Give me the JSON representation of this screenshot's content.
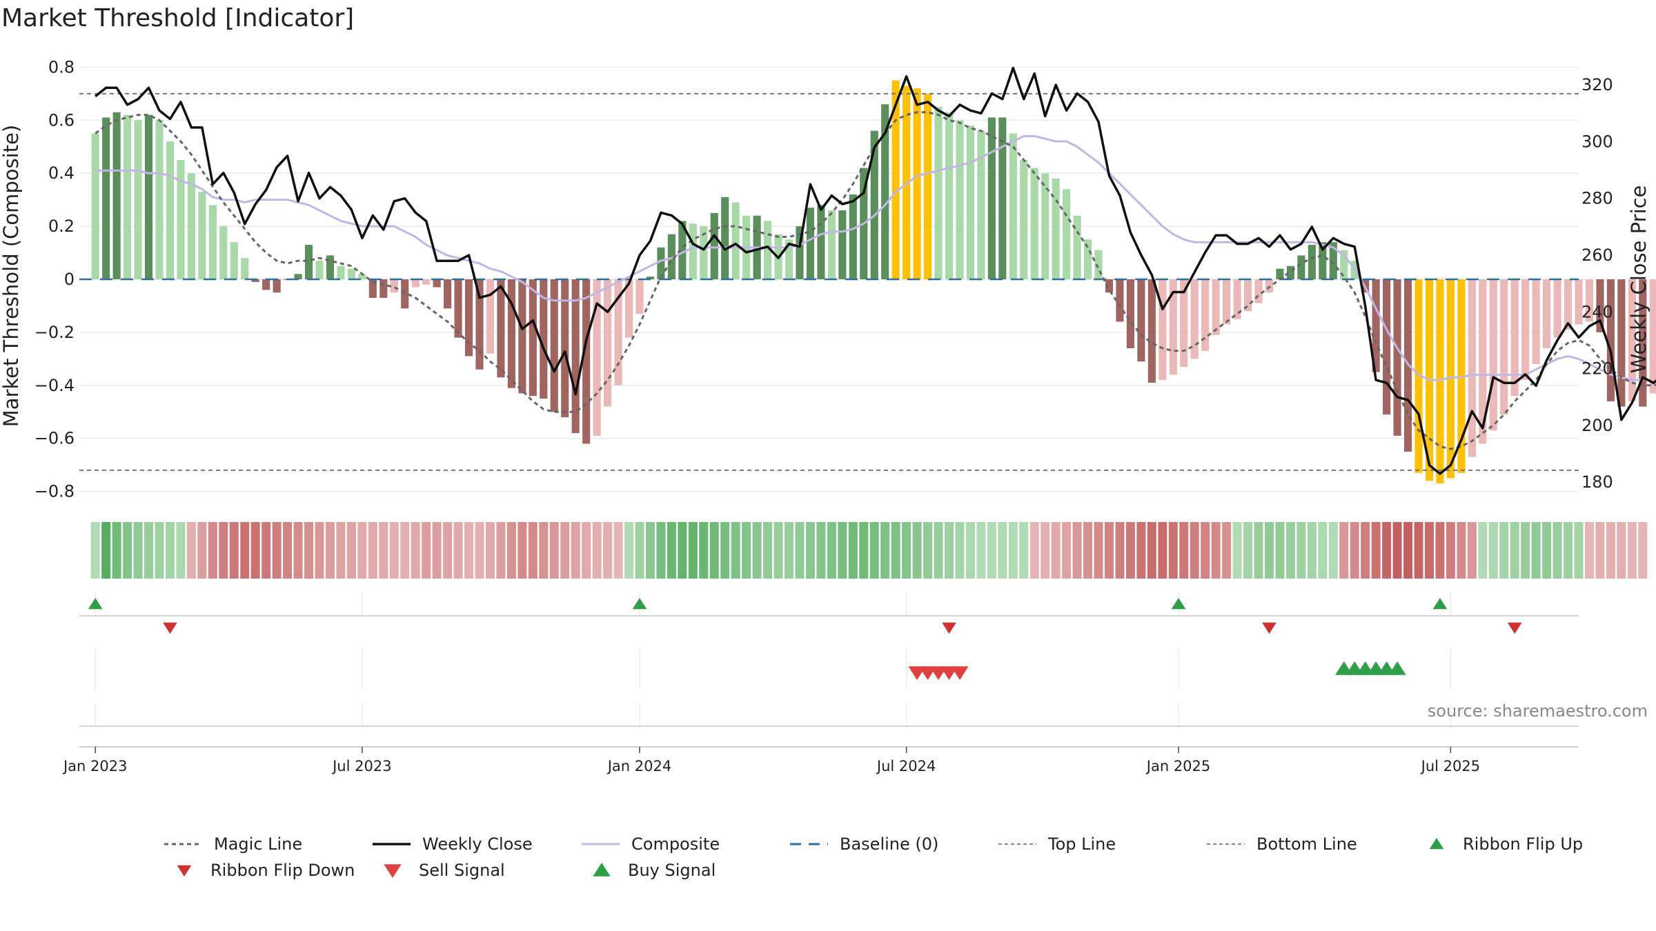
{
  "title": "Market Threshold [Indicator]",
  "source": "source: sharemaestro.com",
  "colors": {
    "up_strong": "#5a8f5c",
    "up_light": "#a9d9a9",
    "down_strong": "#a06461",
    "down_light": "#eab8b6",
    "extreme": "#ffc107",
    "weekly_close": "#111111",
    "magic_line": "#666666",
    "composite": "#c2b6e6",
    "baseline": "#2f6f9f",
    "buy": "#2e9e48",
    "sell": "#e0413f",
    "flip_up": "#2e9e48",
    "flip_down": "#d03030"
  },
  "chart_data": {
    "type": "bar",
    "title": "Market Threshold [Indicator]",
    "ylabel_left": "Market Threshold (Composite)",
    "ylabel_right": "Weekly Close Price",
    "ylim_left": [
      -0.84,
      0.84
    ],
    "ylim_right": [
      173,
      330
    ],
    "yticks_left": [
      {
        "v": 0.8,
        "label": "0.8"
      },
      {
        "v": 0.6,
        "label": "0.6"
      },
      {
        "v": 0.4,
        "label": "0.4"
      },
      {
        "v": 0.2,
        "label": "0.2"
      },
      {
        "v": 0,
        "label": "0"
      },
      {
        "v": -0.2,
        "label": "−0.2"
      },
      {
        "v": -0.4,
        "label": "−0.4"
      },
      {
        "v": -0.6,
        "label": "−0.6"
      },
      {
        "v": -0.8,
        "label": "−0.8"
      }
    ],
    "yticks_right": [
      {
        "v": 320,
        "label": "320"
      },
      {
        "v": 300,
        "label": "300"
      },
      {
        "v": 280,
        "label": "280"
      },
      {
        "v": 260,
        "label": "260"
      },
      {
        "v": 240,
        "label": "240"
      },
      {
        "v": 220,
        "label": "220"
      },
      {
        "v": 200,
        "label": "200"
      },
      {
        "v": 180,
        "label": "180"
      }
    ],
    "x_range_weeks": [
      -1.5,
      139
    ],
    "xticks": [
      {
        "week": 0,
        "label": "Jan 2023"
      },
      {
        "week": 25,
        "label": "Jul 2023"
      },
      {
        "week": 51,
        "label": "Jan 2024"
      },
      {
        "week": 76,
        "label": "Jul 2024"
      },
      {
        "week": 101.5,
        "label": "Jan 2025"
      },
      {
        "week": 127,
        "label": "Jul 2025"
      }
    ],
    "top_line": 0.7,
    "bottom_line": -0.72,
    "grid": true,
    "legend_position": "bottom",
    "composite_bars": [
      0.55,
      0.61,
      0.63,
      0.62,
      0.6,
      0.62,
      0.6,
      0.52,
      0.45,
      0.4,
      0.33,
      0.28,
      0.2,
      0.14,
      0.08,
      -0.01,
      -0.04,
      -0.05,
      0.0,
      0.02,
      0.13,
      0.07,
      0.09,
      0.05,
      0.04,
      0.02,
      -0.07,
      -0.07,
      -0.05,
      -0.11,
      -0.03,
      -0.02,
      -0.03,
      -0.11,
      -0.22,
      -0.29,
      -0.34,
      -0.28,
      -0.37,
      -0.41,
      -0.43,
      -0.44,
      -0.45,
      -0.5,
      -0.52,
      -0.58,
      -0.62,
      -0.59,
      -0.48,
      -0.4,
      -0.22,
      -0.13,
      0.01,
      0.12,
      0.17,
      0.22,
      0.21,
      0.2,
      0.25,
      0.31,
      0.29,
      0.24,
      0.24,
      0.22,
      0.17,
      0.15,
      0.2,
      0.27,
      0.28,
      0.26,
      0.26,
      0.32,
      0.42,
      0.56,
      0.66,
      0.75,
      0.73,
      0.72,
      0.7,
      0.65,
      0.63,
      0.6,
      0.58,
      0.56,
      0.61,
      0.61,
      0.55,
      0.45,
      0.42,
      0.4,
      0.38,
      0.34,
      0.24,
      0.15,
      0.11,
      -0.05,
      -0.16,
      -0.26,
      -0.31,
      -0.39,
      -0.38,
      -0.36,
      -0.33,
      -0.3,
      -0.27,
      -0.21,
      -0.17,
      -0.15,
      -0.12,
      -0.09,
      -0.05,
      0.04,
      0.05,
      0.09,
      0.13,
      0.14,
      0.14,
      0.11,
      0.07,
      -0.05,
      -0.35,
      -0.51,
      -0.59,
      -0.65,
      -0.73,
      -0.76,
      -0.77,
      -0.75,
      -0.73,
      -0.67,
      -0.62,
      -0.57,
      -0.51,
      -0.44,
      -0.38,
      -0.32,
      -0.26,
      -0.22,
      -0.19,
      -0.17,
      -0.16,
      -0.2,
      -0.46,
      -0.48,
      -0.46,
      -0.48,
      -0.43
    ],
    "weekly_close": [
      316,
      319,
      319,
      313,
      315,
      319,
      311,
      308,
      314,
      305,
      305,
      285,
      289,
      282,
      271,
      278,
      283,
      291,
      295,
      279,
      289,
      280,
      284,
      281,
      276,
      266,
      274,
      269,
      279,
      280,
      275,
      272,
      258,
      258,
      258,
      260,
      245,
      246,
      249,
      243,
      234,
      237,
      227,
      219,
      226,
      211,
      230,
      243,
      240,
      245,
      250,
      260,
      265,
      275,
      274,
      271,
      264,
      262,
      267,
      262,
      264,
      261,
      262,
      263,
      259,
      264,
      263,
      285,
      276,
      281,
      278,
      279,
      282,
      298,
      303,
      313,
      323,
      313,
      314,
      311,
      309,
      313,
      311,
      310,
      317,
      315,
      326,
      315,
      324,
      309,
      320,
      311,
      317,
      314,
      307,
      288,
      281,
      268,
      260,
      253,
      241,
      247,
      247,
      254,
      261,
      267,
      267,
      264,
      264,
      266,
      263,
      267,
      262,
      264,
      270,
      262,
      266,
      264,
      263,
      242,
      216,
      215,
      210,
      209,
      204,
      186,
      183,
      186,
      195,
      205,
      199,
      217,
      215,
      215,
      218,
      214,
      223,
      230,
      236,
      231,
      235,
      237,
      226,
      202,
      208,
      217,
      215,
      218,
      217,
      222
    ],
    "magic_line": [
      0.55,
      0.58,
      0.6,
      0.61,
      0.62,
      0.62,
      0.6,
      0.56,
      0.52,
      0.47,
      0.41,
      0.35,
      0.29,
      0.24,
      0.19,
      0.14,
      0.1,
      0.07,
      0.06,
      0.07,
      0.07,
      0.08,
      0.07,
      0.06,
      0.05,
      0.02,
      -0.01,
      -0.02,
      -0.03,
      -0.05,
      -0.07,
      -0.1,
      -0.13,
      -0.16,
      -0.2,
      -0.24,
      -0.27,
      -0.31,
      -0.34,
      -0.38,
      -0.42,
      -0.46,
      -0.49,
      -0.5,
      -0.5,
      -0.5,
      -0.47,
      -0.43,
      -0.38,
      -0.32,
      -0.25,
      -0.17,
      -0.08,
      0.01,
      0.07,
      0.12,
      0.15,
      0.17,
      0.19,
      0.2,
      0.2,
      0.19,
      0.18,
      0.17,
      0.16,
      0.16,
      0.17,
      0.18,
      0.21,
      0.25,
      0.3,
      0.36,
      0.43,
      0.5,
      0.55,
      0.6,
      0.62,
      0.63,
      0.63,
      0.62,
      0.6,
      0.59,
      0.57,
      0.56,
      0.54,
      0.52,
      0.5,
      0.45,
      0.4,
      0.35,
      0.3,
      0.24,
      0.18,
      0.12,
      0.04,
      -0.04,
      -0.1,
      -0.16,
      -0.21,
      -0.24,
      -0.26,
      -0.27,
      -0.27,
      -0.25,
      -0.22,
      -0.19,
      -0.16,
      -0.13,
      -0.1,
      -0.06,
      -0.03,
      0.0,
      0.03,
      0.06,
      0.08,
      0.09,
      0.06,
      0.01,
      -0.05,
      -0.14,
      -0.24,
      -0.33,
      -0.42,
      -0.51,
      -0.57,
      -0.6,
      -0.63,
      -0.64,
      -0.63,
      -0.61,
      -0.58,
      -0.55,
      -0.51,
      -0.46,
      -0.42,
      -0.38,
      -0.32,
      -0.27,
      -0.24,
      -0.23,
      -0.25,
      -0.3,
      -0.34,
      -0.37,
      -0.39,
      -0.4,
      -0.4,
      -0.39,
      -0.39
    ],
    "composite_line": [
      0.41,
      0.41,
      0.41,
      0.41,
      0.41,
      0.4,
      0.4,
      0.39,
      0.37,
      0.36,
      0.34,
      0.31,
      0.3,
      0.3,
      0.29,
      0.3,
      0.3,
      0.3,
      0.3,
      0.29,
      0.28,
      0.26,
      0.24,
      0.22,
      0.21,
      0.2,
      0.2,
      0.2,
      0.2,
      0.18,
      0.16,
      0.13,
      0.11,
      0.09,
      0.08,
      0.07,
      0.06,
      0.04,
      0.03,
      0.01,
      -0.01,
      -0.04,
      -0.07,
      -0.08,
      -0.08,
      -0.08,
      -0.07,
      -0.05,
      -0.03,
      -0.01,
      0.01,
      0.03,
      0.05,
      0.07,
      0.08,
      0.1,
      0.12,
      0.12,
      0.12,
      0.12,
      0.12,
      0.12,
      0.12,
      0.12,
      0.12,
      0.12,
      0.13,
      0.15,
      0.17,
      0.18,
      0.18,
      0.19,
      0.21,
      0.24,
      0.28,
      0.33,
      0.36,
      0.39,
      0.4,
      0.41,
      0.42,
      0.43,
      0.44,
      0.46,
      0.48,
      0.5,
      0.52,
      0.54,
      0.54,
      0.53,
      0.52,
      0.52,
      0.5,
      0.47,
      0.44,
      0.4,
      0.36,
      0.32,
      0.28,
      0.24,
      0.2,
      0.17,
      0.15,
      0.14,
      0.14,
      0.14,
      0.14,
      0.14,
      0.14,
      0.14,
      0.14,
      0.14,
      0.14,
      0.14,
      0.14,
      0.13,
      0.12,
      0.09,
      0.04,
      -0.03,
      -0.11,
      -0.19,
      -0.26,
      -0.32,
      -0.36,
      -0.38,
      -0.38,
      -0.37,
      -0.37,
      -0.36,
      -0.36,
      -0.36,
      -0.36,
      -0.36,
      -0.36,
      -0.34,
      -0.32,
      -0.3,
      -0.29,
      -0.3,
      -0.32,
      -0.34,
      -0.36,
      -0.37,
      -0.38,
      -0.38
    ],
    "ribbon": [
      0.3,
      1.0,
      0.8,
      0.65,
      0.55,
      0.5,
      0.45,
      0.4,
      0.35,
      -0.3,
      -0.45,
      -0.6,
      -0.7,
      -0.75,
      -0.8,
      -0.8,
      -0.75,
      -0.7,
      -0.65,
      -0.6,
      -0.55,
      -0.5,
      -0.45,
      -0.4,
      -0.4,
      -0.35,
      -0.35,
      -0.35,
      -0.3,
      -0.3,
      -0.35,
      -0.45,
      -0.45,
      -0.4,
      -0.35,
      -0.3,
      -0.3,
      -0.35,
      -0.45,
      -0.55,
      -0.6,
      -0.6,
      -0.55,
      -0.5,
      -0.45,
      -0.4,
      -0.35,
      -0.3,
      -0.3,
      -0.25,
      0.3,
      0.45,
      0.6,
      0.75,
      0.85,
      0.9,
      0.9,
      0.85,
      0.8,
      0.75,
      0.7,
      0.65,
      0.6,
      0.55,
      0.5,
      0.5,
      0.55,
      0.6,
      0.65,
      0.7,
      0.75,
      0.8,
      0.8,
      0.75,
      0.7,
      0.7,
      0.65,
      0.6,
      0.55,
      0.5,
      0.45,
      0.4,
      0.35,
      0.3,
      0.3,
      0.3,
      0.3,
      0.3,
      -0.25,
      -0.3,
      -0.35,
      -0.4,
      -0.5,
      -0.55,
      -0.6,
      -0.65,
      -0.7,
      -0.75,
      -0.8,
      -0.85,
      -0.85,
      -0.8,
      -0.75,
      -0.7,
      -0.65,
      -0.6,
      -0.55,
      0.3,
      0.4,
      0.5,
      0.55,
      0.55,
      0.5,
      0.45,
      0.4,
      0.35,
      0.3,
      -0.5,
      -0.6,
      -0.7,
      -0.8,
      -0.9,
      -0.95,
      -0.95,
      -0.9,
      -0.85,
      -0.8,
      -0.7,
      -0.6,
      -0.5,
      0.3,
      0.35,
      0.4,
      0.45,
      0.5,
      0.55,
      0.55,
      0.5,
      0.45,
      0.4,
      -0.25,
      -0.3,
      -0.3,
      -0.3,
      -0.25,
      -0.25
    ],
    "ribbon_flip_up_weeks": [
      0,
      51,
      101.5,
      126
    ],
    "ribbon_flip_down_weeks": [
      7,
      80,
      110,
      133
    ],
    "sell_signal_weeks": [
      77,
      78,
      79,
      80,
      81
    ],
    "buy_signal_weeks": [
      117,
      118,
      119,
      120,
      121,
      122
    ]
  },
  "legend": [
    {
      "key": "magic",
      "label": "Magic Line"
    },
    {
      "key": "close",
      "label": "Weekly Close"
    },
    {
      "key": "composite",
      "label": "Composite"
    },
    {
      "key": "baseline",
      "label": "Baseline (0)"
    },
    {
      "key": "top",
      "label": "Top Line"
    },
    {
      "key": "bottom",
      "label": "Bottom Line"
    },
    {
      "key": "flipup",
      "label": "Ribbon Flip Up"
    },
    {
      "key": "flipdown",
      "label": "Ribbon Flip Down"
    },
    {
      "key": "sell",
      "label": "Sell Signal"
    },
    {
      "key": "buy",
      "label": "Buy Signal"
    }
  ]
}
